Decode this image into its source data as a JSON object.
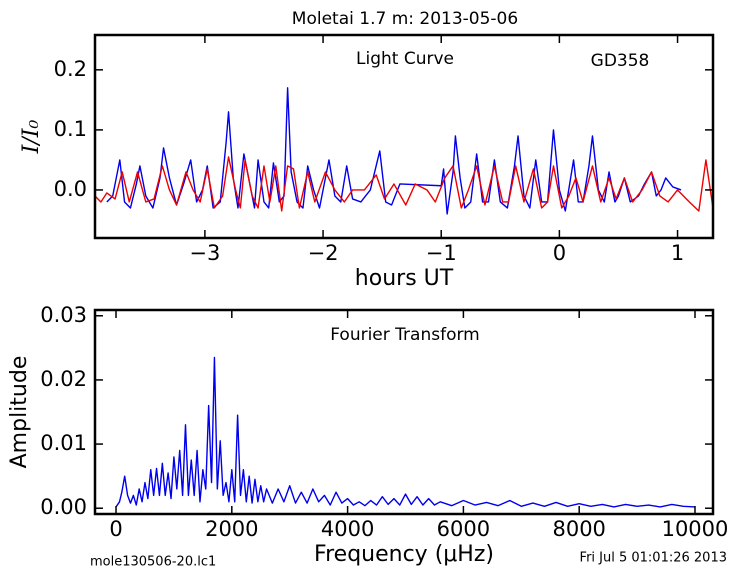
{
  "chart_data": [
    {
      "type": "line",
      "title": "Moletai 1.7 m:  2013-05-06",
      "annotations": [
        "Light Curve",
        "GD358"
      ],
      "x_label": "hours UT",
      "y_label": "I/I₀",
      "xlim": [
        -3.93,
        1.3
      ],
      "ylim": [
        -0.08,
        0.258
      ],
      "xticks": [
        {
          "value": -3,
          "label": "−3"
        },
        {
          "value": -2,
          "label": "−2"
        },
        {
          "value": -1,
          "label": "−1"
        },
        0,
        1
      ],
      "yticks": [
        {
          "value": 0,
          "label": "0.0"
        },
        0.1,
        0.2
      ],
      "series": [
        {
          "color": "#0000ee",
          "x": [
            -3.83,
            -3.78,
            -3.72,
            -3.68,
            -3.63,
            -3.58,
            -3.55,
            -3.5,
            -3.44,
            -3.38,
            -3.35,
            -3.3,
            -3.24,
            -3.18,
            -3.12,
            -3.07,
            -3.02,
            -2.98,
            -2.93,
            -2.87,
            -2.82,
            -2.8,
            -2.76,
            -2.72,
            -2.67,
            -2.63,
            -2.58,
            -2.55,
            -2.5,
            -2.46,
            -2.42,
            -2.37,
            -2.33,
            -2.3,
            -2.27,
            -2.22,
            -2.17,
            -2.13,
            -2.08,
            -2.03,
            -1.95,
            -1.9,
            -1.85,
            -1.8,
            -1.75,
            -1.68,
            -1.6,
            -1.52,
            -1.47,
            -1.42,
            -1.37,
            -1.35,
            -1.0,
            -0.98,
            -0.95,
            -0.9,
            -0.88,
            -0.84,
            -0.8,
            -0.75,
            -0.7,
            -0.65,
            -0.6,
            -0.55,
            -0.5,
            -0.44,
            -0.38,
            -0.35,
            -0.3,
            -0.25,
            -0.2,
            -0.15,
            -0.1,
            -0.05,
            0.0,
            0.05,
            0.12,
            0.16,
            0.2,
            0.25,
            0.28,
            0.33,
            0.38,
            0.42,
            0.47,
            0.5,
            0.55,
            0.6,
            0.67,
            0.72,
            0.78,
            0.82,
            0.86,
            0.9,
            0.96,
            1.03
          ],
          "values": [
            -0.02,
            -0.01,
            0.05,
            -0.02,
            -0.03,
            0.01,
            0.04,
            -0.01,
            -0.03,
            0.02,
            0.07,
            0.02,
            -0.025,
            0.01,
            0.05,
            -0.02,
            0.0,
            0.04,
            -0.03,
            -0.02,
            0.08,
            0.13,
            0.02,
            -0.03,
            0.06,
            0.02,
            -0.03,
            0.05,
            -0.02,
            -0.03,
            0.045,
            -0.02,
            -0.01,
            0.17,
            0.03,
            -0.02,
            -0.03,
            0.04,
            0.0,
            -0.03,
            0.05,
            -0.01,
            -0.02,
            0.04,
            -0.015,
            -0.02,
            0.0,
            0.065,
            -0.02,
            -0.025,
            0.0,
            0.01,
            0.007,
            0.035,
            -0.04,
            0.03,
            0.09,
            0.02,
            -0.03,
            -0.02,
            0.06,
            -0.02,
            -0.02,
            0.05,
            -0.02,
            -0.03,
            0.04,
            0.09,
            -0.01,
            -0.03,
            0.05,
            -0.02,
            -0.02,
            0.1,
            0.0,
            -0.035,
            0.05,
            -0.02,
            -0.02,
            0.04,
            0.09,
            0.0,
            -0.02,
            0.03,
            -0.02,
            -0.01,
            0.02,
            -0.02,
            -0.01,
            0.01,
            0.03,
            -0.01,
            0.0,
            0.02,
            0.005,
            0.0
          ]
        },
        {
          "color": "#ee0000",
          "x": [
            -3.93,
            -3.88,
            -3.83,
            -3.76,
            -3.7,
            -3.64,
            -3.57,
            -3.5,
            -3.43,
            -3.36,
            -3.3,
            -3.24,
            -3.16,
            -3.1,
            -3.04,
            -2.98,
            -2.92,
            -2.85,
            -2.8,
            -2.74,
            -2.7,
            -2.66,
            -2.6,
            -2.55,
            -2.5,
            -2.45,
            -2.4,
            -2.35,
            -2.3,
            -2.25,
            -2.2,
            -2.13,
            -2.07,
            -1.98,
            -1.9,
            -1.82,
            -1.75,
            -1.65,
            -1.55,
            -1.48,
            -1.4,
            -1.3,
            -1.22,
            -1.12,
            -1.05,
            -0.97,
            -0.9,
            -0.83,
            -0.77,
            -0.7,
            -0.63,
            -0.55,
            -0.48,
            -0.43,
            -0.37,
            -0.3,
            -0.22,
            -0.15,
            -0.1,
            -0.05,
            0.02,
            0.08,
            0.14,
            0.2,
            0.28,
            0.35,
            0.42,
            0.48,
            0.55,
            0.62,
            0.7,
            0.78,
            0.85,
            0.92,
            1.0,
            1.05,
            1.1,
            1.18,
            1.24,
            1.3
          ],
          "values": [
            -0.01,
            -0.02,
            -0.005,
            -0.015,
            0.03,
            -0.02,
            0.03,
            -0.02,
            -0.015,
            0.04,
            0.0,
            -0.025,
            0.03,
            0.0,
            -0.02,
            0.035,
            -0.03,
            -0.01,
            0.055,
            0.0,
            -0.03,
            0.05,
            -0.01,
            -0.03,
            0.04,
            -0.02,
            0.04,
            -0.035,
            0.04,
            0.035,
            -0.03,
            0.03,
            -0.02,
            0.03,
            0.0,
            -0.02,
            0.0,
            0.0,
            0.025,
            -0.015,
            0.01,
            -0.025,
            0.01,
            0.0,
            -0.02,
            0.02,
            0.04,
            -0.03,
            0.0,
            0.04,
            -0.025,
            0.04,
            -0.02,
            -0.02,
            0.04,
            -0.02,
            0.035,
            -0.03,
            -0.02,
            0.04,
            -0.03,
            -0.01,
            0.02,
            -0.02,
            0.04,
            -0.02,
            0.02,
            -0.015,
            0.02,
            -0.02,
            0.0,
            0.03,
            -0.01,
            -0.02,
            0.0,
            -0.01,
            -0.02,
            -0.035,
            0.05,
            -0.03
          ]
        }
      ]
    },
    {
      "type": "line",
      "annotations": [
        "Fourier Transform"
      ],
      "x_label": "Frequency (μHz)",
      "y_label": "Amplitude",
      "xlim": [
        -363,
        10311
      ],
      "ylim": [
        -0.0009,
        0.0309
      ],
      "xticks": [
        0,
        2000,
        4000,
        6000,
        8000,
        10000
      ],
      "yticks": [
        {
          "value": 0,
          "label": "0.00"
        },
        0.01,
        0.02,
        0.03
      ],
      "series": [
        {
          "color": "#0000ee",
          "x": [
            0,
            60,
            100,
            150,
            200,
            250,
            300,
            350,
            400,
            450,
            500,
            550,
            600,
            650,
            700,
            750,
            800,
            850,
            900,
            950,
            1000,
            1050,
            1100,
            1150,
            1200,
            1250,
            1300,
            1350,
            1400,
            1450,
            1500,
            1550,
            1600,
            1650,
            1700,
            1750,
            1800,
            1850,
            1900,
            1950,
            2000,
            2050,
            2100,
            2150,
            2200,
            2250,
            2300,
            2350,
            2400,
            2450,
            2500,
            2550,
            2600,
            2700,
            2800,
            2900,
            3000,
            3100,
            3200,
            3300,
            3400,
            3500,
            3600,
            3700,
            3800,
            3900,
            4000,
            4100,
            4200,
            4300,
            4400,
            4500,
            4600,
            4700,
            4800,
            4900,
            5000,
            5100,
            5200,
            5300,
            5400,
            5500,
            5600,
            5800,
            6000,
            6200,
            6400,
            6600,
            6800,
            7000,
            7200,
            7400,
            7600,
            7800,
            8000,
            8200,
            8400,
            8600,
            8800,
            9000,
            9200,
            9400,
            9600,
            9800,
            10000
          ],
          "values": [
            0.0002,
            0.001,
            0.0025,
            0.005,
            0.002,
            0.0008,
            0.002,
            0.0005,
            0.003,
            0.001,
            0.004,
            0.0015,
            0.006,
            0.002,
            0.0062,
            0.002,
            0.007,
            0.002,
            0.0055,
            0.0015,
            0.008,
            0.003,
            0.009,
            0.002,
            0.013,
            0.002,
            0.0075,
            0.002,
            0.009,
            0.001,
            0.006,
            0.003,
            0.016,
            0.004,
            0.0235,
            0.003,
            0.0105,
            0.002,
            0.004,
            0.001,
            0.006,
            0.001,
            0.0145,
            0.002,
            0.006,
            0.001,
            0.005,
            0.0008,
            0.0045,
            0.001,
            0.0035,
            0.001,
            0.003,
            0.0008,
            0.003,
            0.001,
            0.0035,
            0.0008,
            0.0025,
            0.0008,
            0.003,
            0.001,
            0.002,
            0.0005,
            0.0025,
            0.0008,
            0.0015,
            0.0005,
            0.001,
            0.0004,
            0.0012,
            0.0005,
            0.0018,
            0.0006,
            0.0015,
            0.0005,
            0.0022,
            0.0006,
            0.0018,
            0.0005,
            0.0015,
            0.0005,
            0.001,
            0.0004,
            0.0012,
            0.0005,
            0.0009,
            0.0004,
            0.0012,
            0.0003,
            0.0008,
            0.0003,
            0.0009,
            0.0003,
            0.0007,
            0.0003,
            0.0006,
            0.0002,
            0.0006,
            0.0003,
            0.0005,
            0.0002,
            0.0006,
            0.0003,
            0.0002
          ]
        }
      ]
    }
  ],
  "footer": {
    "left": "mole130506-20.lc1",
    "right": "Fri Jul  5 01:01:26 2013"
  }
}
